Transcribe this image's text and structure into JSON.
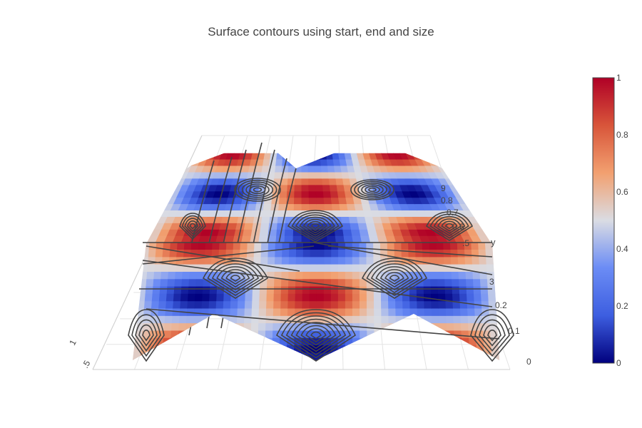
{
  "chart_data": {
    "type": "surface",
    "title": "Surface contours using start, end and size",
    "colorscale": "coolwarm",
    "colorscale_stops": [
      "#00007e",
      "#3d5ee0",
      "#6b8cf5",
      "#dadce3",
      "#f2a070",
      "#d8553a",
      "#b00026"
    ],
    "color_min": 0,
    "color_max": 1,
    "colorbar_ticks": [
      "0",
      "0.2",
      "0.4",
      "0.6",
      "0.8",
      "1"
    ],
    "y_axis": {
      "title": "y",
      "ticks_back": [
        "9",
        "0.8",
        "0.7",
        "0.6",
        ".5"
      ],
      "ticks_front": [
        "3",
        "0.2",
        "0.1",
        "0"
      ]
    },
    "x_axis": {
      "visible_ticks": [
        "1",
        ".5"
      ]
    },
    "contours": {
      "z": {
        "show": true,
        "start": 0,
        "end": 1,
        "size": 0.04
      },
      "x": {
        "show": true
      },
      "y": {
        "show": true
      },
      "color": "#444444"
    },
    "grid": true
  }
}
